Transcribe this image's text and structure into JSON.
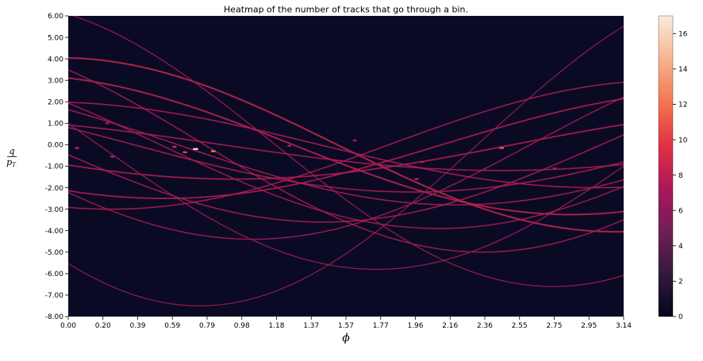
{
  "chart_data": {
    "type": "heatmap",
    "title": "Heatmap of the number of tracks that go through a bin.",
    "xlabel": "ϕ",
    "ylabel": {
      "numerator": "q",
      "denominator": "p",
      "subscript": "T"
    },
    "xlim": [
      0.0,
      3.14
    ],
    "ylim": [
      -8.0,
      6.0
    ],
    "x_ticks": [
      "0.00",
      "0.20",
      "0.39",
      "0.59",
      "0.79",
      "0.98",
      "1.18",
      "1.37",
      "1.57",
      "1.77",
      "1.96",
      "2.16",
      "2.36",
      "2.55",
      "2.75",
      "2.95",
      "3.14"
    ],
    "y_ticks": [
      "6.00",
      "5.00",
      "4.00",
      "3.00",
      "2.00",
      "1.00",
      "0.00",
      "-1.00",
      "-2.00",
      "-3.00",
      "-4.00",
      "-5.00",
      "-6.00",
      "-7.00",
      "-8.00"
    ],
    "colorbar": {
      "range": [
        0,
        17
      ],
      "ticks": [
        "0",
        "2",
        "4",
        "6",
        "8",
        "10",
        "12",
        "14",
        "16"
      ],
      "colormap": "rocket",
      "stops": [
        "#03051a",
        "#35193e",
        "#701f57",
        "#ae1759",
        "#e13342",
        "#f37651",
        "#f6b48f",
        "#faebdd"
      ]
    },
    "background": "#0b0a24",
    "tracks": [
      {
        "amplitude": 4.05,
        "phase": 0.05,
        "offset": 0.0,
        "weight": 3.5
      },
      {
        "amplitude": 3.25,
        "phase": 0.3,
        "offset": 0.0,
        "weight": 3.2
      },
      {
        "amplitude": 2.5,
        "phase": 2.6,
        "offset": 0.0,
        "weight": 2.6
      },
      {
        "amplitude": 1.6,
        "phase": 2.2,
        "offset": 0.0,
        "weight": 2.6
      },
      {
        "amplitude": 5.0,
        "phase": 0.8,
        "offset": 0.0,
        "weight": 1.8
      },
      {
        "amplitude": 2.2,
        "phase": 1.2,
        "offset": 0.0,
        "weight": 2.2
      },
      {
        "amplitude": 3.6,
        "phase": 1.7,
        "offset": 0.0,
        "weight": 2.0
      },
      {
        "amplitude": 2.8,
        "phase": 0.95,
        "offset": 0.0,
        "weight": 2.0
      },
      {
        "amplitude": 6.6,
        "phase": 0.4,
        "offset": 0.0,
        "weight": 1.2
      },
      {
        "amplitude": 1.2,
        "phase": 0.7,
        "offset": 0.0,
        "weight": 2.2
      },
      {
        "amplitude": 4.4,
        "phase": 2.1,
        "offset": 0.0,
        "weight": 1.6
      },
      {
        "amplitude": 3.0,
        "phase": 2.9,
        "offset": 0.0,
        "weight": 2.0
      },
      {
        "amplitude": 5.8,
        "phase": 1.4,
        "offset": 0.0,
        "weight": 1.2
      },
      {
        "amplitude": 2.0,
        "phase": 0.15,
        "offset": 0.0,
        "weight": 2.2
      },
      {
        "amplitude": 3.9,
        "phase": 1.05,
        "offset": 0.0,
        "weight": 1.8
      },
      {
        "amplitude": 7.5,
        "phase": 2.4,
        "offset": 0.0,
        "weight": 1.0
      }
    ],
    "hotspots": [
      {
        "x": 0.72,
        "y": -0.2,
        "value": 16
      },
      {
        "x": 0.82,
        "y": -0.3,
        "value": 12
      },
      {
        "x": 0.66,
        "y": -0.35,
        "value": 10
      },
      {
        "x": 0.6,
        "y": -0.1,
        "value": 9
      },
      {
        "x": 0.25,
        "y": -0.55,
        "value": 8
      },
      {
        "x": 0.05,
        "y": -0.15,
        "value": 8
      },
      {
        "x": 2.45,
        "y": -0.15,
        "value": 11
      },
      {
        "x": 2.0,
        "y": -0.8,
        "value": 8
      },
      {
        "x": 1.97,
        "y": -1.6,
        "value": 8
      },
      {
        "x": 1.62,
        "y": 0.2,
        "value": 7
      },
      {
        "x": 2.75,
        "y": -1.1,
        "value": 7
      },
      {
        "x": 0.22,
        "y": 1.0,
        "value": 7
      },
      {
        "x": 1.25,
        "y": -0.05,
        "value": 7
      }
    ]
  }
}
